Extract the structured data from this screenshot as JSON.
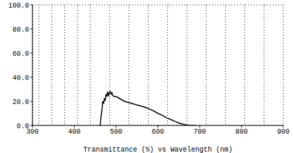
{
  "chart_data": {
    "type": "line",
    "x_label": "Transmittance (%) vs Wavelength (nm)",
    "color": "#000000",
    "grid": true,
    "xlim": [
      300,
      900
    ],
    "xticks": [
      300,
      400,
      500,
      600,
      700,
      800,
      900
    ],
    "ylim": [
      0,
      100
    ],
    "yticks": [
      {
        "value": 0,
        "label": "0.0"
      },
      {
        "value": 20,
        "label": "20.0"
      },
      {
        "value": 40,
        "label": "40.0"
      },
      {
        "value": 60,
        "label": "60.0"
      },
      {
        "value": 80,
        "label": "80.0"
      },
      {
        "value": 100,
        "label": "100.0"
      }
    ],
    "x": [
      460,
      462,
      464,
      466,
      468,
      470,
      472,
      474,
      476,
      478,
      480,
      482,
      484,
      486,
      488,
      490,
      492,
      495,
      500,
      505,
      510,
      515,
      520,
      530,
      540,
      550,
      560,
      570,
      580,
      590,
      600,
      610,
      620,
      630,
      640,
      650,
      660,
      670,
      680,
      690
    ],
    "values": [
      0,
      0,
      8,
      12,
      20,
      18,
      22,
      21,
      26,
      24,
      28,
      25,
      27,
      28,
      26,
      27,
      25,
      24,
      24,
      23,
      22,
      21,
      20,
      19,
      18,
      17,
      16,
      15,
      13.5,
      12,
      10,
      8.5,
      6.5,
      5,
      3.5,
      2,
      1,
      0.3,
      0,
      0
    ]
  }
}
